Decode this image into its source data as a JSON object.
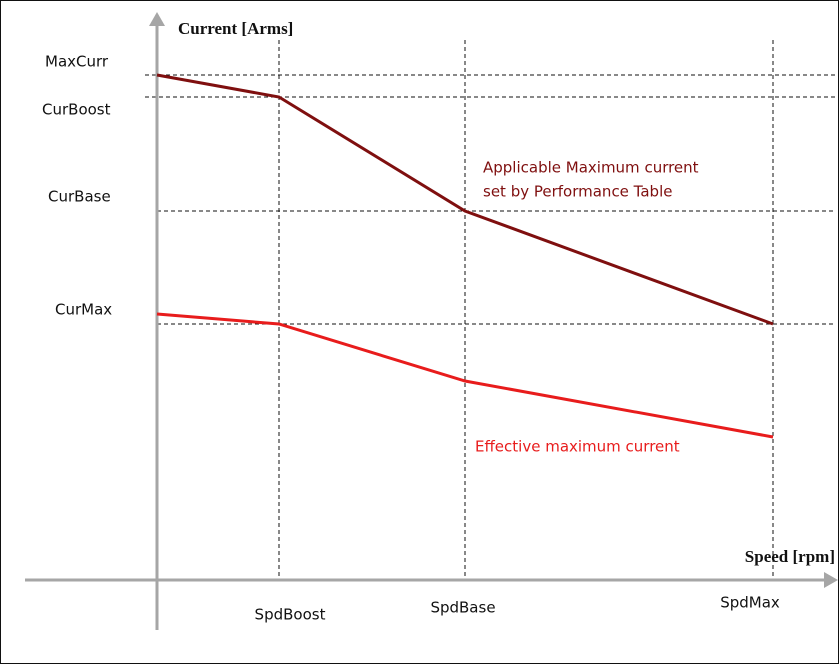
{
  "y_axis": {
    "label": "Current [Arms]",
    "levels": [
      "MaxCurr",
      "CurBoost",
      "CurBase",
      "CurMax"
    ]
  },
  "x_axis": {
    "label": "Speed [rpm]",
    "levels": [
      "SpdBoost",
      "SpdBase",
      "SpdMax"
    ]
  },
  "curves": [
    {
      "label": [
        "Applicable Maximum current",
        "set by Performance Table"
      ],
      "color": "#7f0f0f"
    },
    {
      "label": [
        "Effective maximum current"
      ],
      "color": "#e81c1c"
    }
  ]
}
